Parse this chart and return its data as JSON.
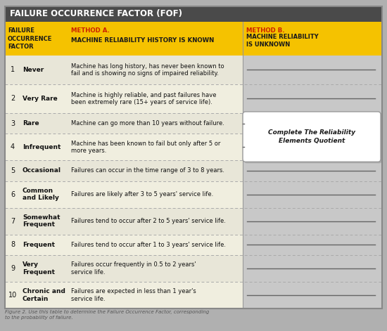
{
  "title": "FAILURE OCCURRENCE FACTOR (FOF)",
  "title_bg": "#4a4a4a",
  "title_color": "#ffffff",
  "header_bg": "#f5c200",
  "header_text_color": "#1a1a1a",
  "red_color": "#cc2200",
  "col1_header": "FAILURE\nOCCURRENCE\nFACTOR",
  "method_a_line1": "METHOD A.",
  "method_a_line2": "MACHINE RELIABILITY HISTORY IS KNOWN",
  "method_b_line1": "METHOD B.",
  "method_b_line2": "MACHINE RELIABILITY\nIS UNKNOWN",
  "rows": [
    {
      "num": "1",
      "label": "Never",
      "desc": "Machine has long history, has never been known to\nfail and is showing no signs of impaired reliability."
    },
    {
      "num": "2",
      "label": "Very Rare",
      "desc": "Machine is highly reliable, and past failures have\nbeen extremely rare (15+ years of service life)."
    },
    {
      "num": "3",
      "label": "Rare",
      "desc": "Machine can go more than 10 years without failure."
    },
    {
      "num": "4",
      "label": "Infrequent",
      "desc": "Machine has been known to fail but only after 5 or\nmore years."
    },
    {
      "num": "5",
      "label": "Occasional",
      "desc": "Failures can occur in the time range of 3 to 8 years."
    },
    {
      "num": "6",
      "label": "Common\nand Likely",
      "desc": "Failures are likely after 3 to 5 years' service life."
    },
    {
      "num": "7",
      "label": "Somewhat\nFrequent",
      "desc": "Failures tend to occur after 2 to 5 years' service life."
    },
    {
      "num": "8",
      "label": "Frequent",
      "desc": "Failures tend to occur after 1 to 3 years' service life."
    },
    {
      "num": "9",
      "label": "Very\nFrequent",
      "desc": "Failures occur frequently in 0.5 to 2 years'\nservice life."
    },
    {
      "num": "10",
      "label": "Chronic and\nCertain",
      "desc": "Failures are expected in less than 1 year's\nservice life."
    }
  ],
  "row_bg_odd": "#e8e6d8",
  "row_bg_even": "#f0eedf",
  "row_bg_col4": "#c8c8c8",
  "dashed_color": "#aaaaaa",
  "box_label": "Complete The Reliability\nElements Quotient",
  "caption": "Figure 2. Use this table to determine the Failure Occurrence Factor, corresponding\nto the probability of failure.",
  "caption_color": "#555555",
  "outer_bg": "#b0b0b0"
}
